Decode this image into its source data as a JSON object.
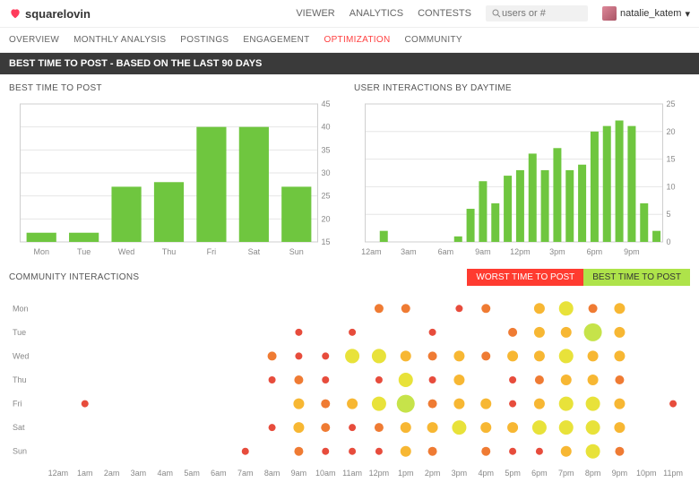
{
  "brand": {
    "name": "squarelovin",
    "icon_color": "#ff3b5b"
  },
  "topnav": {
    "items": [
      "VIEWER",
      "ANALYTICS",
      "CONTESTS"
    ]
  },
  "search": {
    "placeholder": "users or #"
  },
  "user": {
    "name": "natalie_katem"
  },
  "subnav": {
    "items": [
      "OVERVIEW",
      "MONTHLY ANALYSIS",
      "POSTINGS",
      "ENGAGEMENT",
      "OPTIMIZATION",
      "COMMUNITY"
    ],
    "active_index": 4
  },
  "section_header": "BEST TIME TO POST - BASED ON THE LAST 90 DAYS",
  "chart1": {
    "title": "BEST TIME TO POST",
    "type": "bar",
    "categories": [
      "Mon",
      "Tue",
      "Wed",
      "Thu",
      "Fri",
      "Sat",
      "Sun"
    ],
    "values": [
      17,
      17,
      27,
      28,
      40,
      40,
      27
    ],
    "ylim": [
      15,
      45
    ],
    "ytick_step": 5,
    "bar_color": "#6fc63f",
    "grid_color": "#e6e6e6",
    "axis_color": "#cfcfcf",
    "label_color": "#888",
    "label_fontsize": 9,
    "bar_width_ratio": 0.7,
    "axis_side": "right"
  },
  "chart2": {
    "title": "USER INTERACTIONS BY DAYTIME",
    "type": "bar",
    "categories": [
      "12am",
      "1am",
      "2am",
      "3am",
      "4am",
      "5am",
      "6am",
      "7am",
      "8am",
      "9am",
      "10am",
      "11am",
      "12pm",
      "1pm",
      "2pm",
      "3pm",
      "4pm",
      "5pm",
      "6pm",
      "7pm",
      "8pm",
      "9pm",
      "10pm",
      "11pm"
    ],
    "values": [
      0,
      2,
      0,
      0,
      0,
      0,
      0,
      1,
      6,
      11,
      7,
      12,
      13,
      16,
      13,
      17,
      13,
      14,
      20,
      21,
      22,
      21,
      7,
      2
    ],
    "xtick_every": 3,
    "ylim": [
      0,
      25
    ],
    "ytick_step": 5,
    "bar_color": "#6fc63f",
    "grid_color": "#e6e6e6",
    "axis_color": "#cfcfcf",
    "label_color": "#888",
    "label_fontsize": 9,
    "bar_width_ratio": 0.65,
    "axis_side": "right"
  },
  "community": {
    "title": "COMMUNITY INTERACTIONS",
    "legend_worst": {
      "label": "WORST TIME TO POST",
      "bg": "#ff3b30"
    },
    "legend_best": {
      "label": "BEST TIME TO POST",
      "bg": "#aee34a"
    },
    "days": [
      "Mon",
      "Tue",
      "Wed",
      "Thu",
      "Fri",
      "Sat",
      "Sun"
    ],
    "hours": [
      "12am",
      "1am",
      "2am",
      "3am",
      "4am",
      "5am",
      "6am",
      "7am",
      "8am",
      "9am",
      "10am",
      "11am",
      "12pm",
      "1pm",
      "2pm",
      "3pm",
      "4pm",
      "5pm",
      "6pm",
      "7pm",
      "8pm",
      "9pm",
      "10pm",
      "11pm"
    ],
    "label_color": "#888",
    "label_fontsize": 9,
    "color_scale": [
      "#e74c3c",
      "#ef7b33",
      "#f7b733",
      "#e8e23a",
      "#c6e34a"
    ],
    "size_scale": [
      4,
      5,
      6,
      8,
      10
    ],
    "points": [
      {
        "d": 0,
        "h": 12,
        "v": 1
      },
      {
        "d": 0,
        "h": 13,
        "v": 1
      },
      {
        "d": 0,
        "h": 15,
        "v": 0
      },
      {
        "d": 0,
        "h": 16,
        "v": 1
      },
      {
        "d": 0,
        "h": 18,
        "v": 2
      },
      {
        "d": 0,
        "h": 19,
        "v": 3
      },
      {
        "d": 0,
        "h": 20,
        "v": 1
      },
      {
        "d": 0,
        "h": 21,
        "v": 2
      },
      {
        "d": 1,
        "h": 9,
        "v": 0
      },
      {
        "d": 1,
        "h": 11,
        "v": 0
      },
      {
        "d": 1,
        "h": 14,
        "v": 0
      },
      {
        "d": 1,
        "h": 17,
        "v": 1
      },
      {
        "d": 1,
        "h": 18,
        "v": 2
      },
      {
        "d": 1,
        "h": 19,
        "v": 2
      },
      {
        "d": 1,
        "h": 20,
        "v": 4
      },
      {
        "d": 1,
        "h": 21,
        "v": 2
      },
      {
        "d": 2,
        "h": 8,
        "v": 1
      },
      {
        "d": 2,
        "h": 9,
        "v": 0
      },
      {
        "d": 2,
        "h": 10,
        "v": 0
      },
      {
        "d": 2,
        "h": 11,
        "v": 3
      },
      {
        "d": 2,
        "h": 12,
        "v": 3
      },
      {
        "d": 2,
        "h": 13,
        "v": 2
      },
      {
        "d": 2,
        "h": 14,
        "v": 1
      },
      {
        "d": 2,
        "h": 15,
        "v": 2
      },
      {
        "d": 2,
        "h": 16,
        "v": 1
      },
      {
        "d": 2,
        "h": 17,
        "v": 2
      },
      {
        "d": 2,
        "h": 18,
        "v": 2
      },
      {
        "d": 2,
        "h": 19,
        "v": 3
      },
      {
        "d": 2,
        "h": 20,
        "v": 2
      },
      {
        "d": 2,
        "h": 21,
        "v": 2
      },
      {
        "d": 3,
        "h": 8,
        "v": 0
      },
      {
        "d": 3,
        "h": 9,
        "v": 1
      },
      {
        "d": 3,
        "h": 10,
        "v": 0
      },
      {
        "d": 3,
        "h": 12,
        "v": 0
      },
      {
        "d": 3,
        "h": 13,
        "v": 3
      },
      {
        "d": 3,
        "h": 14,
        "v": 0
      },
      {
        "d": 3,
        "h": 15,
        "v": 2
      },
      {
        "d": 3,
        "h": 17,
        "v": 0
      },
      {
        "d": 3,
        "h": 18,
        "v": 1
      },
      {
        "d": 3,
        "h": 19,
        "v": 2
      },
      {
        "d": 3,
        "h": 20,
        "v": 2
      },
      {
        "d": 3,
        "h": 21,
        "v": 1
      },
      {
        "d": 4,
        "h": 1,
        "v": 0
      },
      {
        "d": 4,
        "h": 9,
        "v": 2
      },
      {
        "d": 4,
        "h": 10,
        "v": 1
      },
      {
        "d": 4,
        "h": 11,
        "v": 2
      },
      {
        "d": 4,
        "h": 12,
        "v": 3
      },
      {
        "d": 4,
        "h": 13,
        "v": 4
      },
      {
        "d": 4,
        "h": 14,
        "v": 1
      },
      {
        "d": 4,
        "h": 15,
        "v": 2
      },
      {
        "d": 4,
        "h": 16,
        "v": 2
      },
      {
        "d": 4,
        "h": 17,
        "v": 0
      },
      {
        "d": 4,
        "h": 18,
        "v": 2
      },
      {
        "d": 4,
        "h": 19,
        "v": 3
      },
      {
        "d": 4,
        "h": 20,
        "v": 3
      },
      {
        "d": 4,
        "h": 21,
        "v": 2
      },
      {
        "d": 4,
        "h": 23,
        "v": 0
      },
      {
        "d": 5,
        "h": 8,
        "v": 0
      },
      {
        "d": 5,
        "h": 9,
        "v": 2
      },
      {
        "d": 5,
        "h": 10,
        "v": 1
      },
      {
        "d": 5,
        "h": 11,
        "v": 0
      },
      {
        "d": 5,
        "h": 12,
        "v": 1
      },
      {
        "d": 5,
        "h": 13,
        "v": 2
      },
      {
        "d": 5,
        "h": 14,
        "v": 2
      },
      {
        "d": 5,
        "h": 15,
        "v": 3
      },
      {
        "d": 5,
        "h": 16,
        "v": 2
      },
      {
        "d": 5,
        "h": 17,
        "v": 2
      },
      {
        "d": 5,
        "h": 18,
        "v": 3
      },
      {
        "d": 5,
        "h": 19,
        "v": 3
      },
      {
        "d": 5,
        "h": 20,
        "v": 3
      },
      {
        "d": 5,
        "h": 21,
        "v": 2
      },
      {
        "d": 6,
        "h": 7,
        "v": 0
      },
      {
        "d": 6,
        "h": 9,
        "v": 1
      },
      {
        "d": 6,
        "h": 10,
        "v": 0
      },
      {
        "d": 6,
        "h": 11,
        "v": 0
      },
      {
        "d": 6,
        "h": 12,
        "v": 0
      },
      {
        "d": 6,
        "h": 13,
        "v": 2
      },
      {
        "d": 6,
        "h": 14,
        "v": 1
      },
      {
        "d": 6,
        "h": 16,
        "v": 1
      },
      {
        "d": 6,
        "h": 17,
        "v": 0
      },
      {
        "d": 6,
        "h": 18,
        "v": 0
      },
      {
        "d": 6,
        "h": 19,
        "v": 2
      },
      {
        "d": 6,
        "h": 20,
        "v": 3
      },
      {
        "d": 6,
        "h": 21,
        "v": 1
      }
    ]
  }
}
